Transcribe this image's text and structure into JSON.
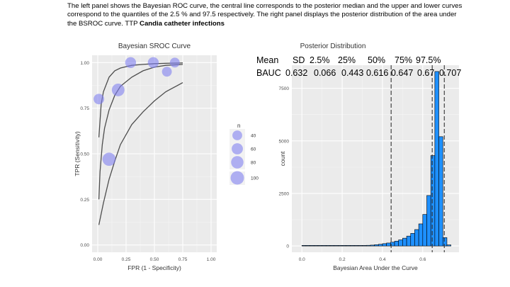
{
  "caption": {
    "text": "The left panel shows the Bayesian ROC curve, the central line corresponds to the posterior median and the upper and lower curves correspond to the quantiles of the 2.5 % and 97.5  respectively. The right panel displays the posterior distribution of the area under the BSROC curve. TTP ",
    "bold": "Candia catheter infections"
  },
  "stats_table": {
    "headers": [
      "Mean",
      "SD",
      "2.5%",
      "25%",
      "50%",
      "75%",
      "97.5%"
    ],
    "row_label": "BAUC",
    "values": [
      "0.632",
      "0.066",
      "0.443",
      "0.616",
      "0.647",
      "0.67",
      "0.707"
    ]
  },
  "chart_data": [
    {
      "type": "scatter",
      "title": "Bayesian SROC Curve",
      "xlabel": "FPR (1 - Specificity)",
      "ylabel": "TPR (Sensitivity)",
      "xlim": [
        0,
        1
      ],
      "ylim": [
        0,
        1
      ],
      "xticks": [
        "0.00",
        "0.25",
        "0.50",
        "0.75",
        "1.00"
      ],
      "yticks": [
        "0.00",
        "0.25",
        "0.50",
        "0.75",
        "1.00"
      ],
      "grid": true,
      "points": [
        {
          "x": 0.01,
          "y": 0.8,
          "n": 50
        },
        {
          "x": 0.1,
          "y": 0.47,
          "n": 95
        },
        {
          "x": 0.18,
          "y": 0.85,
          "n": 85
        },
        {
          "x": 0.29,
          "y": 1.0,
          "n": 55
        },
        {
          "x": 0.49,
          "y": 1.0,
          "n": 55
        },
        {
          "x": 0.61,
          "y": 0.95,
          "n": 40
        },
        {
          "x": 0.68,
          "y": 1.0,
          "n": 40
        }
      ],
      "curves": [
        {
          "name": "upper",
          "points": [
            [
              0.01,
              0.59
            ],
            [
              0.03,
              0.77
            ],
            [
              0.05,
              0.84
            ],
            [
              0.1,
              0.92
            ],
            [
              0.15,
              0.955
            ],
            [
              0.2,
              0.97
            ],
            [
              0.3,
              0.985
            ],
            [
              0.4,
              0.99
            ],
            [
              0.5,
              0.994
            ],
            [
              0.6,
              0.996
            ],
            [
              0.75,
              0.998
            ]
          ]
        },
        {
          "name": "median",
          "points": [
            [
              0.01,
              0.25
            ],
            [
              0.02,
              0.4
            ],
            [
              0.04,
              0.55
            ],
            [
              0.06,
              0.64
            ],
            [
              0.1,
              0.74
            ],
            [
              0.15,
              0.82
            ],
            [
              0.2,
              0.87
            ],
            [
              0.3,
              0.92
            ],
            [
              0.4,
              0.955
            ],
            [
              0.5,
              0.975
            ],
            [
              0.6,
              0.985
            ],
            [
              0.75,
              0.99
            ]
          ]
        },
        {
          "name": "lower",
          "points": [
            [
              0.01,
              0.11
            ],
            [
              0.03,
              0.17
            ],
            [
              0.05,
              0.23
            ],
            [
              0.1,
              0.36
            ],
            [
              0.15,
              0.46
            ],
            [
              0.2,
              0.55
            ],
            [
              0.3,
              0.66
            ],
            [
              0.4,
              0.73
            ],
            [
              0.5,
              0.79
            ],
            [
              0.6,
              0.84
            ],
            [
              0.75,
              0.89
            ]
          ]
        }
      ],
      "legend": {
        "title": "n",
        "placement": "right",
        "entries": [
          {
            "label": "40",
            "n": 40
          },
          {
            "label": "60",
            "n": 60
          },
          {
            "label": "80",
            "n": 80
          },
          {
            "label": "100",
            "n": 100
          }
        ]
      },
      "point_color": "#8080f0"
    },
    {
      "type": "bar",
      "title": "Posterior Distribution",
      "xlabel": "Bayesian Area Under the Curve",
      "ylabel": "count",
      "xlim": [
        -0.05,
        0.78
      ],
      "ylim": [
        -300,
        8600
      ],
      "xticks": [
        "0.0",
        "0.2",
        "0.4",
        "0.6"
      ],
      "yticks": [
        "0",
        "2500",
        "5000",
        "7500"
      ],
      "bin_width": 0.02,
      "bins": [
        {
          "x": 0.0,
          "count": 0
        },
        {
          "x": 0.02,
          "count": 0
        },
        {
          "x": 0.04,
          "count": 0
        },
        {
          "x": 0.06,
          "count": 0
        },
        {
          "x": 0.08,
          "count": 0
        },
        {
          "x": 0.1,
          "count": 0
        },
        {
          "x": 0.12,
          "count": 0
        },
        {
          "x": 0.14,
          "count": 0
        },
        {
          "x": 0.16,
          "count": 0
        },
        {
          "x": 0.18,
          "count": 0
        },
        {
          "x": 0.2,
          "count": 0
        },
        {
          "x": 0.22,
          "count": 0
        },
        {
          "x": 0.24,
          "count": 0
        },
        {
          "x": 0.26,
          "count": 0
        },
        {
          "x": 0.28,
          "count": 10
        },
        {
          "x": 0.3,
          "count": 20
        },
        {
          "x": 0.32,
          "count": 30
        },
        {
          "x": 0.34,
          "count": 40
        },
        {
          "x": 0.36,
          "count": 60
        },
        {
          "x": 0.38,
          "count": 80
        },
        {
          "x": 0.4,
          "count": 110
        },
        {
          "x": 0.42,
          "count": 140
        },
        {
          "x": 0.44,
          "count": 180
        },
        {
          "x": 0.46,
          "count": 230
        },
        {
          "x": 0.48,
          "count": 290
        },
        {
          "x": 0.5,
          "count": 370
        },
        {
          "x": 0.52,
          "count": 470
        },
        {
          "x": 0.54,
          "count": 600
        },
        {
          "x": 0.56,
          "count": 780
        },
        {
          "x": 0.58,
          "count": 1050
        },
        {
          "x": 0.6,
          "count": 1500
        },
        {
          "x": 0.62,
          "count": 2400
        },
        {
          "x": 0.64,
          "count": 4300
        },
        {
          "x": 0.66,
          "count": 8300
        },
        {
          "x": 0.68,
          "count": 5200
        },
        {
          "x": 0.7,
          "count": 400
        },
        {
          "x": 0.72,
          "count": 50
        }
      ],
      "vlines": [
        0.443,
        0.647,
        0.707
      ],
      "bar_color": "#1e90ff",
      "grid": true
    }
  ]
}
